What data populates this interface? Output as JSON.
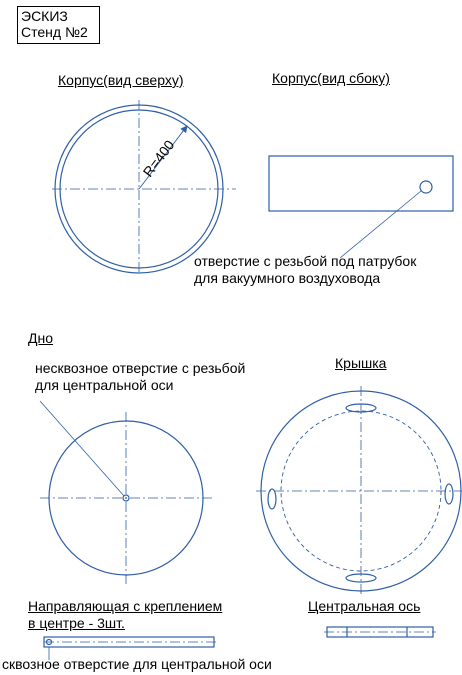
{
  "stamp": {
    "line1": "ЭСКИЗ",
    "line2": "Стенд №2"
  },
  "body_top": {
    "title": "Корпус(вид сверху)",
    "radius_label": "R=400"
  },
  "body_side": {
    "title": "Корпус(вид сбоку)",
    "note_line1": "отверстие с резьбой под патрубок",
    "note_line2": "для вакуумного воздуховода"
  },
  "bottom": {
    "title": "Дно",
    "note_line1": "несквозное отверстие с резьбой",
    "note_line2": "для центральной оси"
  },
  "lid": {
    "title": "Крышка"
  },
  "guide": {
    "title_line1": "Направляющая с креплением",
    "title_line2": "в центре - 3шт.",
    "note": "сквозное отверстие для центральной оси"
  },
  "axis": {
    "title": "Центральная ось"
  },
  "colors": {
    "line": "#2f5fa8",
    "text": "#000000"
  }
}
